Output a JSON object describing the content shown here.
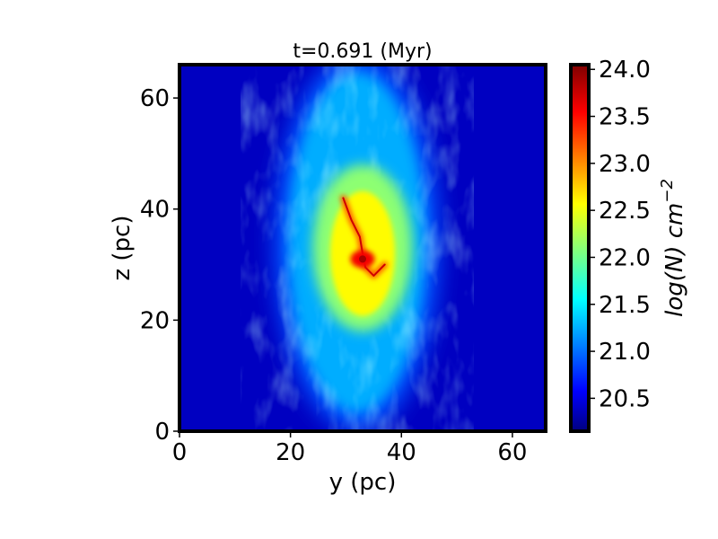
{
  "chart_data": {
    "type": "heatmap",
    "title": "t=0.691 (Myr)",
    "xlabel": "y (pc)",
    "ylabel": "z (pc)",
    "xlim": [
      0,
      66
    ],
    "ylim": [
      0,
      66
    ],
    "xticks": [
      0,
      20,
      40,
      60
    ],
    "yticks": [
      0,
      20,
      40,
      60
    ],
    "colormap": "jet",
    "colorbar": {
      "label_base": "log(N) cm",
      "label_exponent": "−2",
      "range": [
        20.15,
        24.05
      ],
      "ticks": [
        "20.5",
        "21.0",
        "21.5",
        "22.0",
        "22.5",
        "23.0",
        "23.5",
        "24.0"
      ]
    },
    "features": {
      "background_level": 20.4,
      "outer_envelope": {
        "center": [
          32,
          34
        ],
        "half_width": 15,
        "half_height": 34,
        "level": 21.3
      },
      "middle_region": {
        "center": [
          33,
          33
        ],
        "half_width": 9,
        "half_height": 15,
        "level": 22.4
      },
      "dense_core": {
        "center": [
          33,
          31
        ],
        "level": 23.9
      },
      "filament": [
        [
          29.5,
          42
        ],
        [
          31,
          38
        ],
        [
          32.5,
          35
        ],
        [
          33,
          32
        ],
        [
          33.5,
          29.5
        ],
        [
          35,
          28
        ],
        [
          37,
          30
        ]
      ]
    }
  },
  "colors": {
    "frame": "#000000",
    "jet_stops": [
      "#00007f",
      "#0000ff",
      "#007fff",
      "#00ffff",
      "#7fff7f",
      "#ffff00",
      "#ff7f00",
      "#ff0000",
      "#7f0000"
    ]
  }
}
